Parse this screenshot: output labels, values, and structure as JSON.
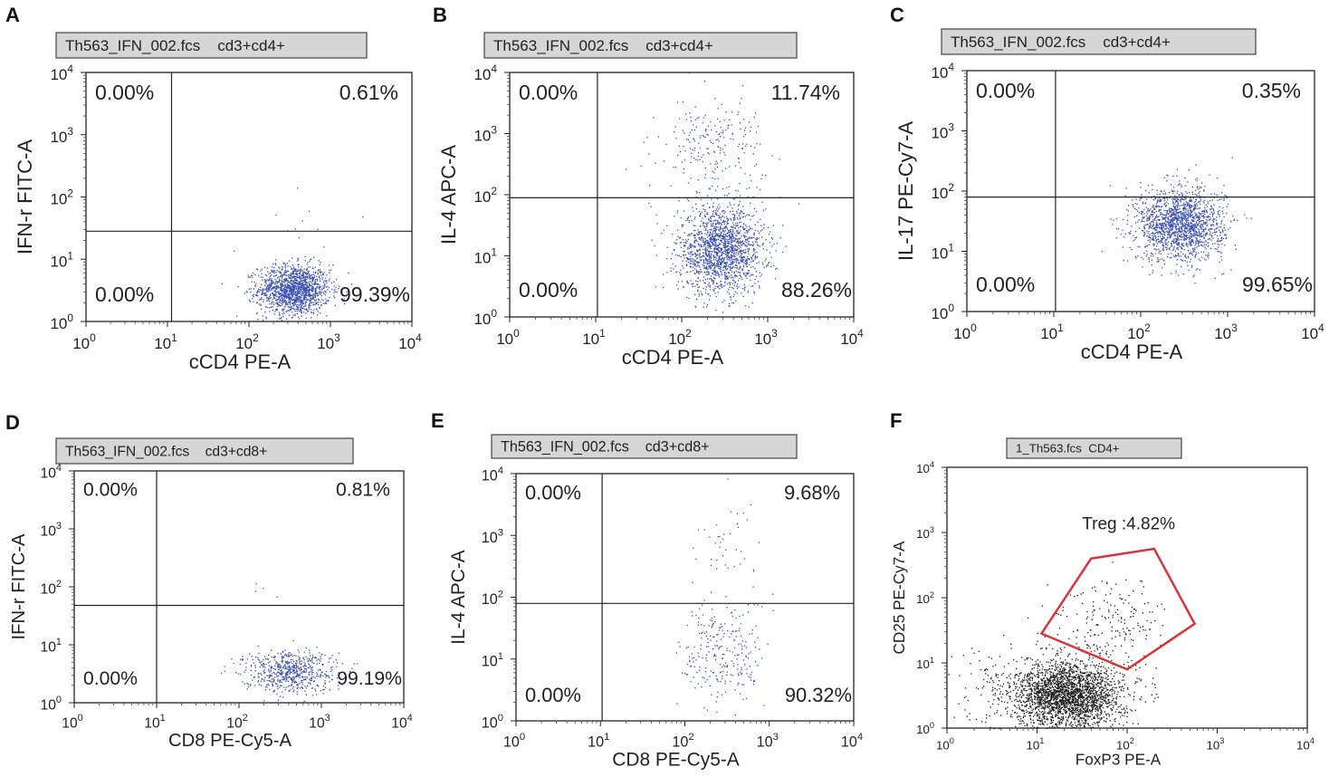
{
  "chart_data": [
    {
      "id": "A",
      "type": "scatter",
      "label": "A",
      "header": "Th563_IFN_002.fcs    cd3+cd4+",
      "xlabel": "cCD4 PE-A",
      "ylabel": "IFN-r FITC-A",
      "xlim_log10": [
        0,
        4
      ],
      "ylim_log10": [
        0,
        4
      ],
      "gate": {
        "x": 1.05,
        "y": 1.45
      },
      "quadrants": {
        "ul": "0.00%",
        "ur": "0.61%",
        "ll": "0.00%",
        "lr": "99.39%"
      },
      "point_color": "#3a4fb0",
      "clusters": [
        {
          "cx": 2.55,
          "cy": 0.52,
          "sx": 0.22,
          "sy": 0.2,
          "n": 1500
        },
        {
          "cx": 2.7,
          "cy": 1.6,
          "sx": 0.3,
          "sy": 0.25,
          "n": 10
        }
      ]
    },
    {
      "id": "B",
      "type": "scatter",
      "label": "B",
      "header": "Th563_IFN_002.fcs    cd3+cd4+",
      "xlabel": "cCD4 PE-A",
      "ylabel": "IL-4 APC-A",
      "xlim_log10": [
        0,
        4
      ],
      "ylim_log10": [
        0,
        4
      ],
      "gate": {
        "x": 1.02,
        "y": 1.95
      },
      "quadrants": {
        "ul": "0.00%",
        "ur": "11.74%",
        "ll": "0.00%",
        "lr": "88.26%"
      },
      "point_color": "#3a4fb0",
      "clusters": [
        {
          "cx": 2.45,
          "cy": 1.1,
          "sx": 0.25,
          "sy": 0.35,
          "n": 1700
        },
        {
          "cx": 2.35,
          "cy": 2.8,
          "sx": 0.3,
          "sy": 0.4,
          "n": 230
        }
      ]
    },
    {
      "id": "C",
      "type": "scatter",
      "label": "C",
      "header": "Th563_IFN_002.fcs    cd3+cd4+",
      "xlabel": "cCD4 PE-A",
      "ylabel": "IL-17 PE-Cy7-A",
      "xlim_log10": [
        0,
        4
      ],
      "ylim_log10": [
        0,
        4
      ],
      "gate": {
        "x": 1.02,
        "y": 1.9
      },
      "quadrants": {
        "ul": "0.00%",
        "ur": "0.35%",
        "ll": "0.00%",
        "lr": "99.65%"
      },
      "point_color": "#3a4fb0",
      "clusters": [
        {
          "cx": 2.45,
          "cy": 1.45,
          "sx": 0.25,
          "sy": 0.3,
          "n": 1700
        },
        {
          "cx": 2.5,
          "cy": 2.2,
          "sx": 0.2,
          "sy": 0.2,
          "n": 8
        }
      ]
    },
    {
      "id": "D",
      "type": "scatter",
      "label": "D",
      "header": "Th563_IFN_002.fcs    cd3+cd8+",
      "xlabel": "CD8 PE-Cy5-A",
      "ylabel": "IFN-r FITC-A",
      "xlim_log10": [
        0,
        4
      ],
      "ylim_log10": [
        0,
        4
      ],
      "gate": {
        "x": 1.0,
        "y": 1.68
      },
      "quadrants": {
        "ul": "0.00%",
        "ur": "0.81%",
        "ll": "0.00%",
        "lr": "99.19%"
      },
      "point_color": "#3a4fb0",
      "clusters": [
        {
          "cx": 2.6,
          "cy": 0.55,
          "sx": 0.28,
          "sy": 0.18,
          "n": 650
        },
        {
          "cx": 2.2,
          "cy": 1.9,
          "sx": 0.15,
          "sy": 0.15,
          "n": 4
        }
      ]
    },
    {
      "id": "E",
      "type": "scatter",
      "label": "E",
      "header": "Th563_IFN_002.fcs    cd3+cd8+",
      "xlabel": "CD8 PE-Cy5-A",
      "ylabel": "IL-4 APC-A",
      "xlim_log10": [
        0,
        4
      ],
      "ylim_log10": [
        0,
        4
      ],
      "gate": {
        "x": 1.02,
        "y": 1.9
      },
      "quadrants": {
        "ul": "0.00%",
        "ur": "9.68%",
        "ll": "0.00%",
        "lr": "90.32%"
      },
      "point_color": "#3a4fb0",
      "clusters": [
        {
          "cx": 2.45,
          "cy": 1.1,
          "sx": 0.25,
          "sy": 0.45,
          "n": 260
        },
        {
          "cx": 2.5,
          "cy": 2.8,
          "sx": 0.2,
          "sy": 0.4,
          "n": 40
        }
      ]
    },
    {
      "id": "F",
      "type": "scatter",
      "label": "F",
      "header": "1_Th563.fcs  CD4+",
      "xlabel": "FoxP3 PE-A",
      "ylabel": "CD25 PE-Cy7-A",
      "xlim_log10": [
        0,
        4
      ],
      "ylim_log10": [
        0,
        4
      ],
      "gate_label": "Treg :4.82%",
      "gate_color": "#d6353c",
      "gate_polygon_log10": [
        [
          1.05,
          1.45
        ],
        [
          1.6,
          2.6
        ],
        [
          2.3,
          2.75
        ],
        [
          2.75,
          1.6
        ],
        [
          2.0,
          0.9
        ]
      ],
      "point_color": "#1a1a1a",
      "clusters": [
        {
          "cx": 1.35,
          "cy": 0.5,
          "sx": 0.3,
          "sy": 0.25,
          "n": 2400
        },
        {
          "cx": 1.8,
          "cy": 1.6,
          "sx": 0.3,
          "sy": 0.35,
          "n": 200
        },
        {
          "cx": 0.9,
          "cy": 0.6,
          "sx": 0.45,
          "sy": 0.35,
          "n": 250
        }
      ]
    }
  ],
  "tick_exponents": [
    "0",
    "1",
    "2",
    "3",
    "4"
  ],
  "tick_base": "10"
}
